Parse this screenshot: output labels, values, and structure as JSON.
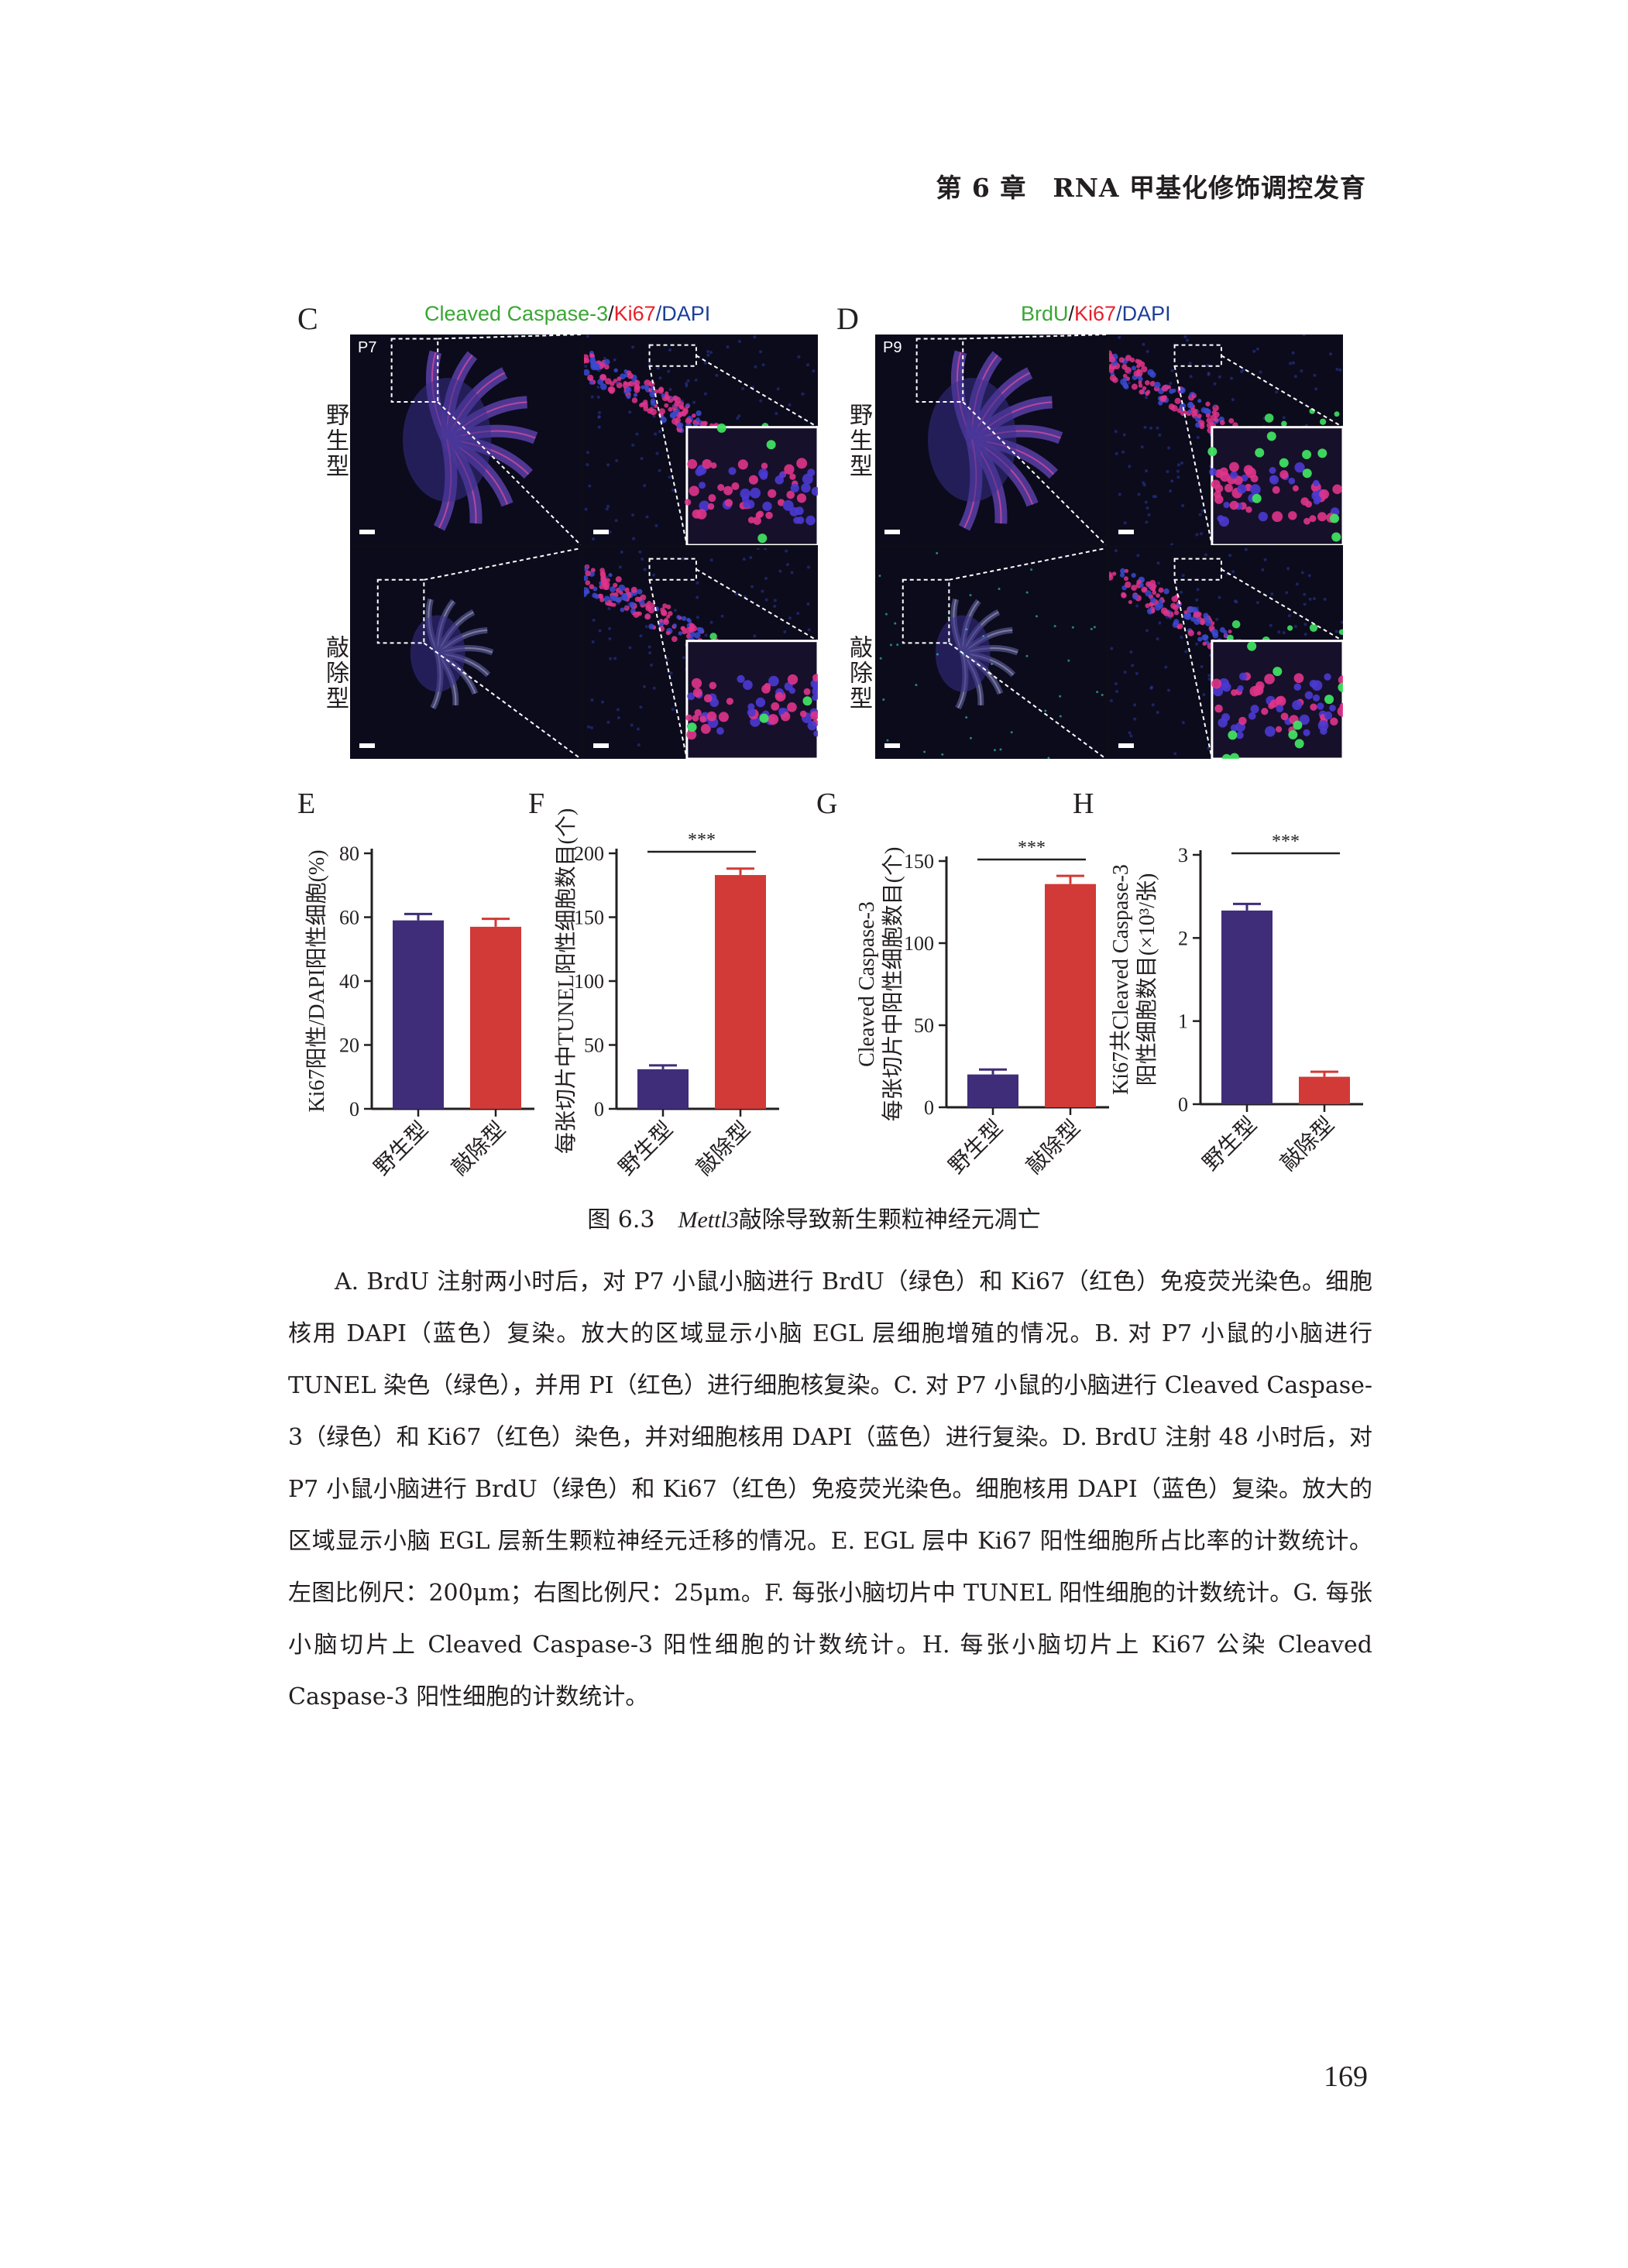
{
  "header": {
    "running_title": "第 6 章　RNA 甲基化修饰调控发育"
  },
  "figure": {
    "panel_c": {
      "letter": "C",
      "title_parts": [
        {
          "text": "Cleaved Caspase-3",
          "color": "#3aa635"
        },
        {
          "text": "/",
          "color": "#231f20"
        },
        {
          "text": "Ki67",
          "color": "#e8202a"
        },
        {
          "text": "/DAPI",
          "color": "#1b3e9a"
        }
      ],
      "age": "P7",
      "rows": [
        "野生型",
        "敲除型"
      ]
    },
    "panel_d": {
      "letter": "D",
      "title_parts": [
        {
          "text": "BrdU",
          "color": "#3aa635"
        },
        {
          "text": "/",
          "color": "#231f20"
        },
        {
          "text": "Ki67",
          "color": "#e8202a"
        },
        {
          "text": "/DAPI",
          "color": "#1b3e9a"
        }
      ],
      "age": "P9",
      "rows": [
        "野生型",
        "敲除型"
      ]
    },
    "caption": {
      "label": "图 6.3",
      "gene": "Mettl3",
      "text": "敲除导致新生颗粒神经元凋亡"
    }
  },
  "chart_data": [
    {
      "panel": "E",
      "type": "bar",
      "categories": [
        "野生型",
        "敲除型"
      ],
      "values": [
        59,
        57
      ],
      "errors": [
        2,
        2.5
      ],
      "colors": [
        "#3f2d7a",
        "#d13a36"
      ],
      "ylabel": "Ki67阳性/DAPI阳性细胞(%)",
      "ylim": [
        0,
        80
      ],
      "yticks": [
        0,
        20,
        40,
        60,
        80
      ],
      "significance": ""
    },
    {
      "panel": "F",
      "type": "bar",
      "categories": [
        "野生型",
        "敲除型"
      ],
      "values": [
        31,
        183
      ],
      "errors": [
        3,
        5
      ],
      "colors": [
        "#3f2d7a",
        "#d13a36"
      ],
      "ylabel": "每张切片中TUNEL阳性细胞数目(个)",
      "ylim": [
        0,
        200
      ],
      "yticks": [
        0,
        50,
        100,
        150,
        200
      ],
      "significance": "***"
    },
    {
      "panel": "G",
      "type": "bar",
      "categories": [
        "野生型",
        "敲除型"
      ],
      "values": [
        20,
        136
      ],
      "errors": [
        3,
        5
      ],
      "colors": [
        "#3f2d7a",
        "#d13a36"
      ],
      "ylabel_lines": [
        "Cleaved Caspase-3",
        "每张切片中阳性细胞数目(个)"
      ],
      "ylim": [
        0,
        150
      ],
      "yticks": [
        0,
        50,
        100,
        150
      ],
      "significance": "***"
    },
    {
      "panel": "H",
      "type": "bar",
      "categories": [
        "野生型",
        "敲除型"
      ],
      "values": [
        2.33,
        0.33
      ],
      "errors": [
        0.08,
        0.06
      ],
      "colors": [
        "#3f2d7a",
        "#d13a36"
      ],
      "ylabel_lines": [
        "Ki67共Cleaved Caspase-3",
        "阳性细胞数目(×10³/张)"
      ],
      "ylim": [
        0,
        3
      ],
      "yticks": [
        0,
        1,
        2,
        3
      ],
      "significance": "***"
    }
  ],
  "body": {
    "paragraph": "A. BrdU 注射两小时后，对 P7 小鼠小脑进行 BrdU（绿色）和 Ki67（红色）免疫荧光染色。细胞核用 DAPI（蓝色）复染。放大的区域显示小脑 EGL 层细胞增殖的情况。B. 对 P7 小鼠的小脑进行 TUNEL 染色（绿色），并用 PI（红色）进行细胞核复染。C. 对 P7 小鼠的小脑进行 Cleaved Caspase-3（绿色）和 Ki67（红色）染色，并对细胞核用 DAPI（蓝色）进行复染。D. BrdU 注射 48 小时后，对 P7 小鼠小脑进行 BrdU（绿色）和 Ki67（红色）免疫荧光染色。细胞核用 DAPI（蓝色）复染。放大的区域显示小脑 EGL 层新生颗粒神经元迁移的情况。E. EGL 层中 Ki67 阳性细胞所占比率的计数统计。左图比例尺：200μm；右图比例尺：25μm。F. 每张小脑切片中 TUNEL 阳性细胞的计数统计。G. 每张小脑切片上 Cleaved Caspase-3 阳性细胞的计数统计。H. 每张小脑切片上 Ki67 公染 Cleaved Caspase-3 阳性细胞的计数统计。"
  },
  "page_number": "169"
}
